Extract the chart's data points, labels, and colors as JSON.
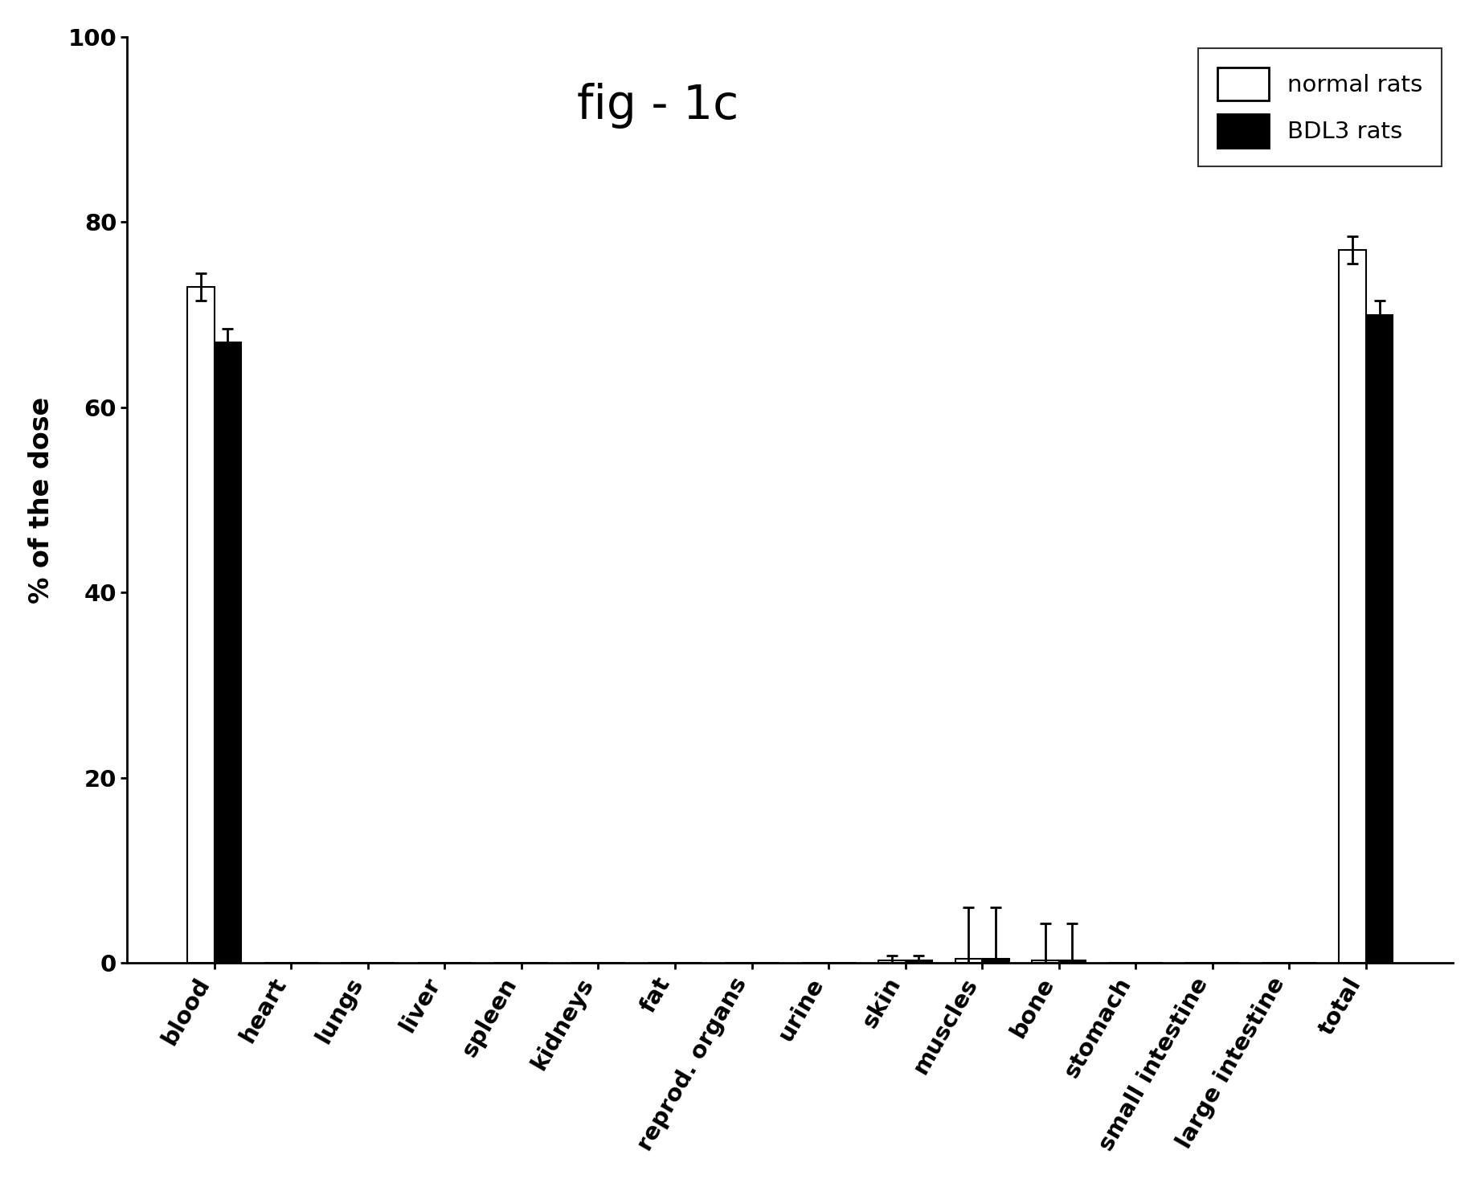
{
  "categories": [
    "blood",
    "heart",
    "lungs",
    "liver",
    "spleen",
    "kidneys",
    "fat",
    "reprod. organs",
    "urine",
    "skin",
    "muscles",
    "bone",
    "stomach",
    "small intestine",
    "large intestine",
    "total"
  ],
  "normal_values": [
    73.0,
    0.0,
    0.0,
    0.0,
    0.0,
    0.0,
    0.0,
    0.0,
    0.0,
    0.3,
    0.5,
    0.3,
    0.0,
    0.0,
    0.0,
    77.0
  ],
  "bdl3_values": [
    67.0,
    0.0,
    0.0,
    0.0,
    0.0,
    0.0,
    0.0,
    0.0,
    0.0,
    0.3,
    0.5,
    0.3,
    0.0,
    0.0,
    0.0,
    70.0
  ],
  "normal_errors": [
    1.5,
    0.0,
    0.0,
    0.0,
    0.0,
    0.0,
    0.0,
    0.0,
    0.0,
    0.5,
    5.5,
    4.0,
    0.0,
    0.0,
    0.0,
    1.5
  ],
  "bdl3_errors": [
    1.5,
    0.0,
    0.0,
    0.0,
    0.0,
    0.0,
    0.0,
    0.0,
    0.0,
    0.5,
    5.5,
    4.0,
    0.0,
    0.0,
    0.0,
    1.5
  ],
  "ylabel": "% of the dose",
  "ylim": [
    0,
    100
  ],
  "yticks": [
    0,
    20,
    40,
    60,
    80,
    100
  ],
  "title": "fig - 1c",
  "legend_labels": [
    "normal rats",
    "BDL3 rats"
  ],
  "bar_width": 0.35,
  "normal_color": "white",
  "bdl3_color": "black",
  "normal_edgecolor": "black",
  "bdl3_edgecolor": "black",
  "background_color": "white",
  "title_fontsize": 42,
  "axis_fontsize": 24,
  "tick_fontsize": 21,
  "legend_fontsize": 21,
  "xlabel_rotation": 60
}
